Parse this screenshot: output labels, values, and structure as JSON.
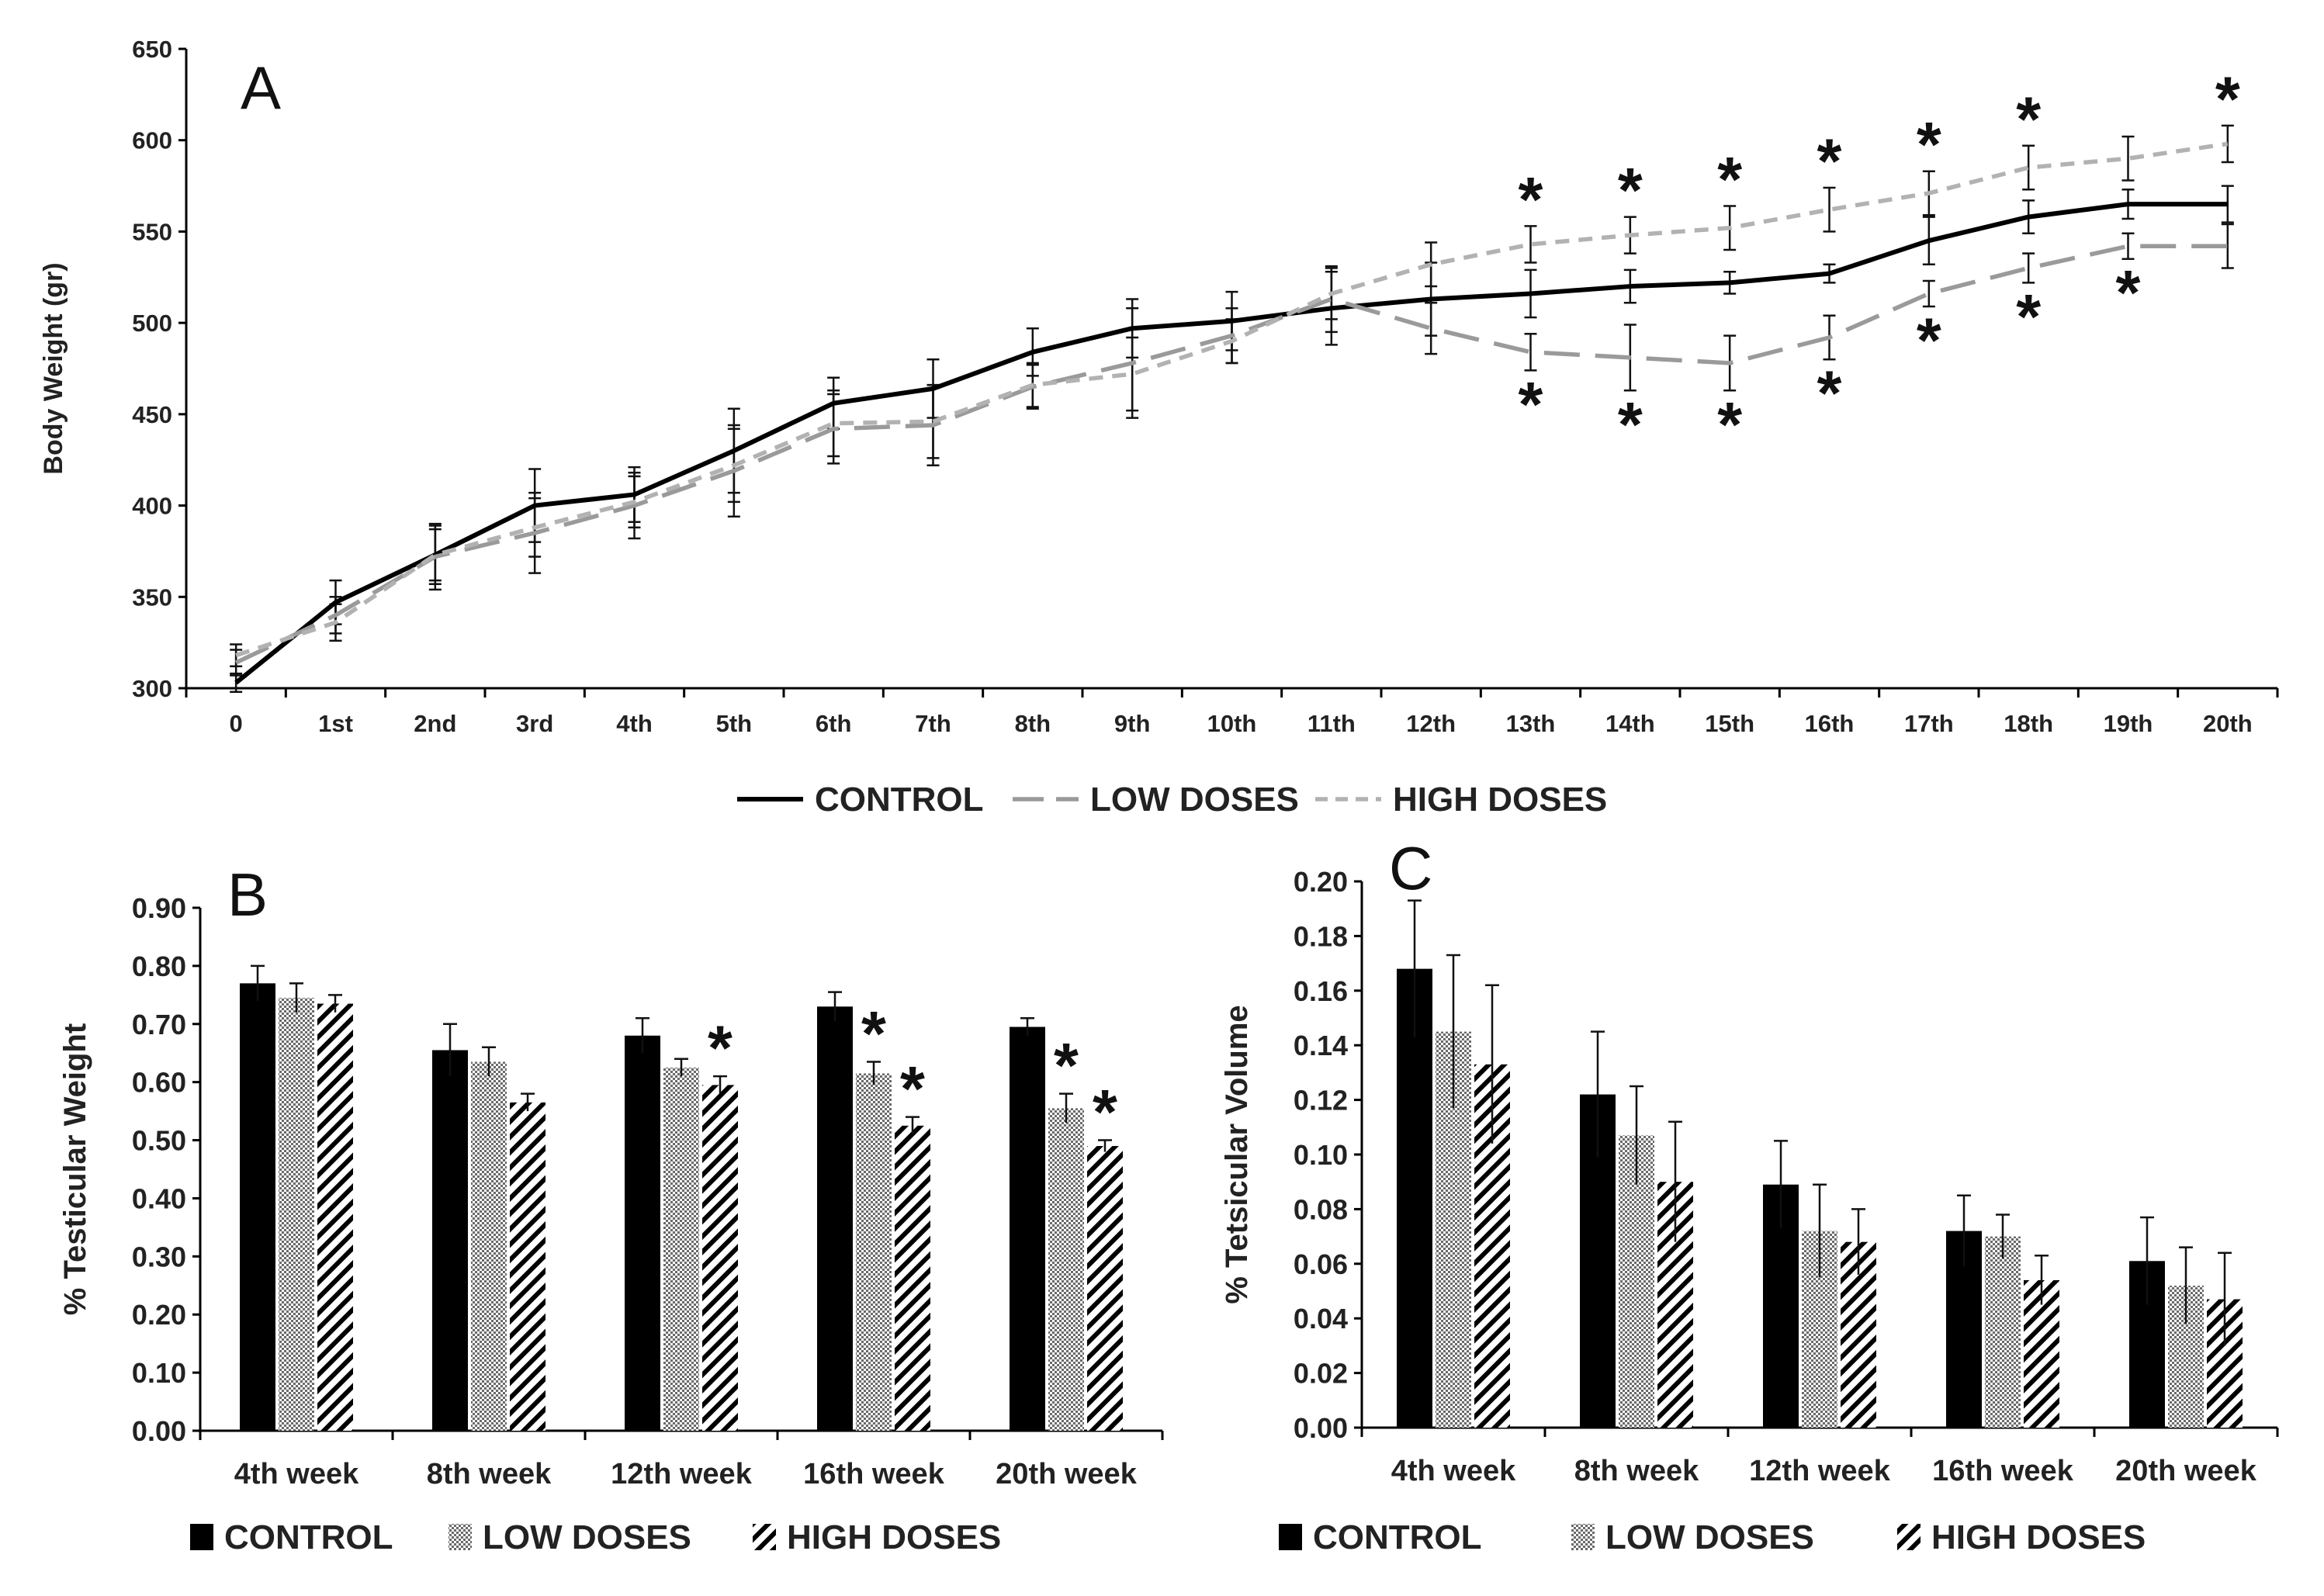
{
  "chart_data": [
    {
      "type": "line",
      "panel_label": "A",
      "ylabel": "Body Weight (gr)",
      "xlabel": "",
      "ylim": [
        300,
        650
      ],
      "yticks": [
        300,
        350,
        400,
        450,
        500,
        550,
        600,
        650
      ],
      "x": [
        "0",
        "1st",
        "2nd",
        "3rd",
        "4th",
        "5th",
        "6th",
        "7th",
        "8th",
        "9th",
        "10th",
        "11th",
        "12th",
        "13th",
        "14th",
        "15th",
        "16th",
        "17th",
        "18th",
        "19th",
        "20th"
      ],
      "series": [
        {
          "name": "CONTROL",
          "color": "#000000",
          "style": "solid",
          "values": [
            303,
            347,
            373,
            400,
            406,
            430,
            456,
            464,
            484,
            497,
            501,
            508,
            513,
            516,
            520,
            522,
            527,
            545,
            558,
            565,
            565
          ],
          "errors": [
            5,
            12,
            16,
            20,
            15,
            23,
            14,
            16,
            13,
            16,
            16,
            20,
            20,
            13,
            9,
            6,
            5,
            13,
            9,
            8,
            10
          ]
        },
        {
          "name": "LOW DOSES",
          "color": "#9a9a9a",
          "style": "longdash",
          "values": [
            314,
            340,
            372,
            385,
            400,
            419,
            442,
            444,
            465,
            478,
            493,
            513,
            497,
            484,
            481,
            478,
            492,
            516,
            530,
            542,
            542
          ],
          "errors": [
            7,
            10,
            18,
            22,
            18,
            25,
            19,
            22,
            12,
            30,
            15,
            18,
            14,
            10,
            18,
            15,
            12,
            7,
            8,
            7,
            12
          ]
        },
        {
          "name": "HIGH DOSES",
          "color": "#b2b2b2",
          "style": "shortdash",
          "values": [
            318,
            336,
            373,
            388,
            402,
            422,
            445,
            446,
            466,
            472,
            490,
            516,
            532,
            543,
            548,
            552,
            562,
            571,
            585,
            590,
            598
          ],
          "errors": [
            6,
            10,
            14,
            16,
            14,
            20,
            18,
            20,
            12,
            20,
            12,
            14,
            12,
            10,
            10,
            12,
            12,
            12,
            12,
            12,
            10
          ]
        }
      ],
      "annotations": {
        "symbol": "*",
        "above_weeks": [
          "13th",
          "14th",
          "15th",
          "16th",
          "17th",
          "18th",
          "20th"
        ],
        "below_weeks": [
          "13th",
          "14th",
          "15th",
          "16th",
          "17th",
          "18th",
          "19th"
        ]
      },
      "legend": [
        "CONTROL",
        "LOW DOSES",
        "HIGH DOSES"
      ],
      "legend_position": "bottom"
    },
    {
      "type": "bar",
      "panel_label": "B",
      "ylabel": "% Testicular Weight",
      "xlabel": "",
      "ylim": [
        0,
        0.9
      ],
      "yticks": [
        "0.00",
        "0.10",
        "0.20",
        "0.30",
        "0.40",
        "0.50",
        "0.60",
        "0.70",
        "0.80",
        "0.90"
      ],
      "categories": [
        "4th week",
        "8th week",
        "12th week",
        "16th week",
        "20th week"
      ],
      "series": [
        {
          "name": "CONTROL",
          "fill": "solid",
          "values": [
            0.77,
            0.655,
            0.68,
            0.73,
            0.695
          ],
          "errors": [
            0.03,
            0.045,
            0.03,
            0.025,
            0.015
          ]
        },
        {
          "name": "LOW DOSES",
          "fill": "dotted",
          "values": [
            0.745,
            0.635,
            0.625,
            0.615,
            0.555
          ],
          "errors": [
            0.025,
            0.025,
            0.015,
            0.02,
            0.025
          ]
        },
        {
          "name": "HIGH DOSES",
          "fill": "hatched",
          "values": [
            0.735,
            0.565,
            0.595,
            0.525,
            0.49
          ],
          "errors": [
            0.015,
            0.015,
            0.015,
            0.015,
            0.01
          ]
        }
      ],
      "annotations": {
        "symbol": "*",
        "marked": [
          "12th week:HIGH DOSES",
          "16th week:LOW DOSES",
          "16th week:HIGH DOSES",
          "20th week:LOW DOSES",
          "20th week:HIGH DOSES"
        ]
      },
      "legend": [
        "CONTROL",
        "LOW DOSES",
        "HIGH DOSES"
      ],
      "legend_position": "bottom"
    },
    {
      "type": "bar",
      "panel_label": "C",
      "ylabel": "% Tetsicular Volume",
      "xlabel": "",
      "ylim": [
        0,
        0.2
      ],
      "yticks": [
        "0.00",
        "0.02",
        "0.04",
        "0.06",
        "0.08",
        "0.10",
        "0.12",
        "0.14",
        "0.16",
        "0.18",
        "0.20"
      ],
      "categories": [
        "4th week",
        "8th week",
        "12th week",
        "16th week",
        "20th week"
      ],
      "series": [
        {
          "name": "CONTROL",
          "fill": "solid",
          "values": [
            0.168,
            0.122,
            0.089,
            0.072,
            0.061
          ],
          "errors": [
            0.025,
            0.023,
            0.016,
            0.013,
            0.016
          ]
        },
        {
          "name": "LOW DOSES",
          "fill": "dotted",
          "values": [
            0.145,
            0.107,
            0.072,
            0.07,
            0.052
          ],
          "errors": [
            0.028,
            0.018,
            0.017,
            0.008,
            0.014
          ]
        },
        {
          "name": "HIGH DOSES",
          "fill": "hatched",
          "values": [
            0.133,
            0.09,
            0.068,
            0.054,
            0.047
          ],
          "errors": [
            0.029,
            0.022,
            0.012,
            0.009,
            0.017
          ]
        }
      ],
      "legend": [
        "CONTROL",
        "LOW DOSES",
        "HIGH DOSES"
      ],
      "legend_position": "bottom"
    }
  ]
}
